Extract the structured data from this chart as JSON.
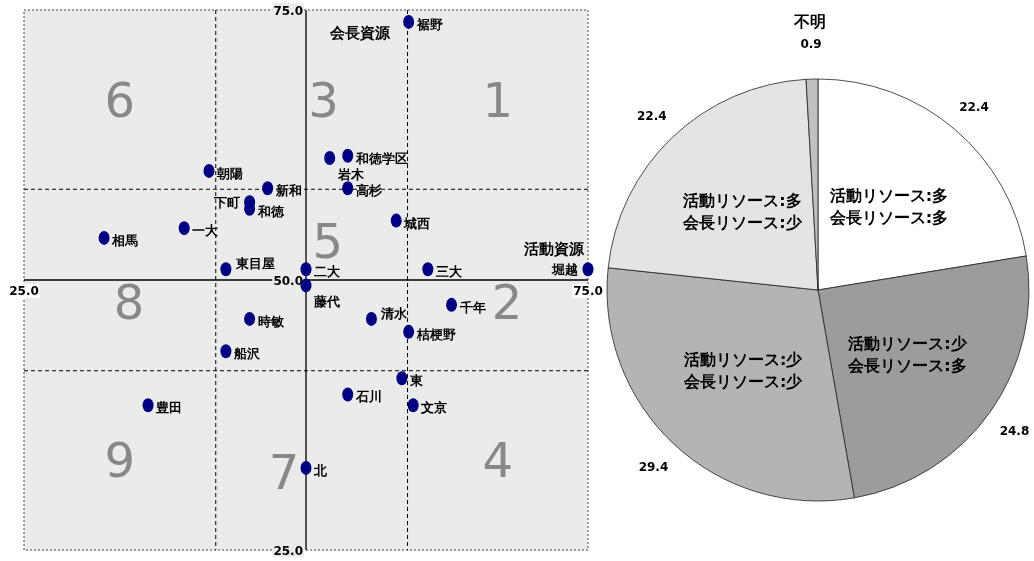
{
  "chart_data": [
    {
      "type": "scatter",
      "xlabel": "活動資源",
      "ylabel": "会長資源",
      "xlim": [
        25,
        75
      ],
      "ylim": [
        25,
        75
      ],
      "xticks": [
        {
          "value": 25,
          "label": "25.0"
        },
        {
          "value": 75,
          "label": "75.0"
        }
      ],
      "yticks": [
        {
          "value": 25,
          "label": "25.0"
        },
        {
          "value": 50,
          "label": "50.0"
        },
        {
          "value": 75,
          "label": "75.0"
        }
      ],
      "marker": "circle",
      "grid": false,
      "legend": false,
      "ref_lines": [
        {
          "axis": "x",
          "value": 42,
          "line_style": "dashed"
        },
        {
          "axis": "x",
          "value": 59,
          "line_style": "dashed"
        },
        {
          "axis": "y",
          "value": 41.6,
          "line_style": "dashed"
        },
        {
          "axis": "y",
          "value": 58.4,
          "line_style": "dashed"
        }
      ],
      "annotations": [
        "6",
        "3",
        "1",
        "8",
        "5",
        "2",
        "9",
        "7",
        "4"
      ],
      "series": [
        {
          "name": "裾野",
          "color": "#000080",
          "x": [
            59.1
          ],
          "values": [
            73.9
          ]
        },
        {
          "name": "岩木",
          "color": "#000080",
          "x": [
            52.1
          ],
          "values": [
            61.3
          ]
        },
        {
          "name": "和徳学区",
          "color": "#000080",
          "x": [
            53.7
          ],
          "values": [
            61.5
          ]
        },
        {
          "name": "朝陽",
          "color": "#000080",
          "x": [
            41.4
          ],
          "values": [
            60.1
          ]
        },
        {
          "name": "新和",
          "color": "#000080",
          "x": [
            46.6
          ],
          "values": [
            58.5
          ]
        },
        {
          "name": "高杉",
          "color": "#000080",
          "x": [
            53.7
          ],
          "values": [
            58.5
          ]
        },
        {
          "name": "下町",
          "color": "#000080",
          "x": [
            45.0
          ],
          "values": [
            57.2
          ]
        },
        {
          "name": "和徳",
          "color": "#000080",
          "x": [
            45.0
          ],
          "values": [
            56.6
          ]
        },
        {
          "name": "城西",
          "color": "#000080",
          "x": [
            58.0
          ],
          "values": [
            55.5
          ]
        },
        {
          "name": "一大",
          "color": "#000080",
          "x": [
            39.2
          ],
          "values": [
            54.8
          ]
        },
        {
          "name": "相馬",
          "color": "#000080",
          "x": [
            32.1
          ],
          "values": [
            53.9
          ]
        },
        {
          "name": "東目屋",
          "color": "#000080",
          "x": [
            42.9
          ],
          "values": [
            51.0
          ]
        },
        {
          "name": "二大",
          "color": "#000080",
          "x": [
            50.0
          ],
          "values": [
            51.0
          ]
        },
        {
          "name": "三大",
          "color": "#000080",
          "x": [
            60.8
          ],
          "values": [
            51.0
          ]
        },
        {
          "name": "堀越",
          "color": "#000080",
          "x": [
            75.0
          ],
          "values": [
            51.0
          ]
        },
        {
          "name": "藤代",
          "color": "#000080",
          "x": [
            50.0
          ],
          "values": [
            49.5
          ]
        },
        {
          "name": "千年",
          "color": "#000080",
          "x": [
            62.9
          ],
          "values": [
            47.7
          ]
        },
        {
          "name": "清水",
          "color": "#000080",
          "x": [
            55.8
          ],
          "values": [
            46.4
          ]
        },
        {
          "name": "時敏",
          "color": "#000080",
          "x": [
            45.0
          ],
          "values": [
            46.4
          ]
        },
        {
          "name": "桔梗野",
          "color": "#000080",
          "x": [
            59.1
          ],
          "values": [
            45.2
          ]
        },
        {
          "name": "船沢",
          "color": "#000080",
          "x": [
            42.9
          ],
          "values": [
            43.4
          ]
        },
        {
          "name": "東",
          "color": "#000080",
          "x": [
            58.5
          ],
          "values": [
            40.9
          ]
        },
        {
          "name": "石川",
          "color": "#000080",
          "x": [
            53.7
          ],
          "values": [
            39.4
          ]
        },
        {
          "name": "文京",
          "color": "#000080",
          "x": [
            59.5
          ],
          "values": [
            38.4
          ]
        },
        {
          "name": "豊田",
          "color": "#000080",
          "x": [
            36.0
          ],
          "values": [
            38.4
          ]
        },
        {
          "name": "北",
          "color": "#000080",
          "x": [
            50.0
          ],
          "values": [
            32.6
          ]
        }
      ]
    },
    {
      "type": "pie",
      "data_labels": true,
      "categories": [
        "活動リソース:多会長リソース:多",
        "活動リソース:少会長リソース:多",
        "活動リソース:少会長リソース:少",
        "活動リソース:多会長リソース:少",
        "不明"
      ],
      "values": [
        22.4,
        24.8,
        29.4,
        22.4,
        0.9
      ],
      "colors": [
        "#ffffff",
        "#9c9c9c",
        "#b4b4b4",
        "#e4e4e4",
        "#c0c0c0"
      ]
    }
  ]
}
